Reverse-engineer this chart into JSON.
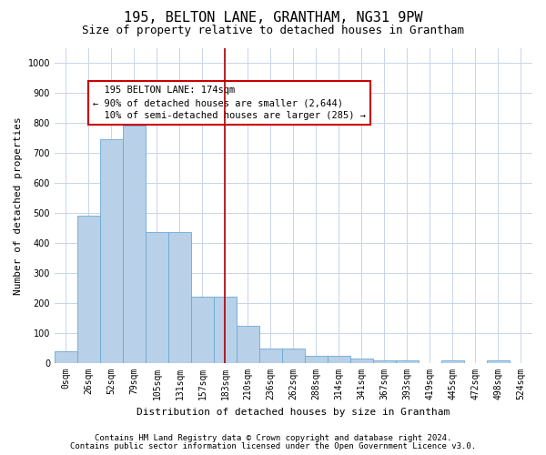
{
  "title": "195, BELTON LANE, GRANTHAM, NG31 9PW",
  "subtitle": "Size of property relative to detached houses in Grantham",
  "xlabel": "Distribution of detached houses by size in Grantham",
  "ylabel": "Number of detached properties",
  "categories": [
    "0sqm",
    "26sqm",
    "52sqm",
    "79sqm",
    "105sqm",
    "131sqm",
    "157sqm",
    "183sqm",
    "210sqm",
    "236sqm",
    "262sqm",
    "288sqm",
    "314sqm",
    "341sqm",
    "367sqm",
    "393sqm",
    "419sqm",
    "445sqm",
    "472sqm",
    "498sqm",
    "524sqm"
  ],
  "bar_heights": [
    40,
    490,
    745,
    790,
    435,
    435,
    220,
    220,
    125,
    50,
    50,
    25,
    25,
    15,
    10,
    10,
    0,
    10,
    0,
    10,
    0
  ],
  "bar_color": "#b8d0e8",
  "bar_edge_color": "#6aaad4",
  "vline_x": 7.0,
  "vline_color": "#aa0000",
  "annotation_text": "  195 BELTON LANE: 174sqm\n← 90% of detached houses are smaller (2,644)\n  10% of semi-detached houses are larger (285) →",
  "annotation_box_color": "#cc0000",
  "ylim": [
    0,
    1050
  ],
  "yticks": [
    0,
    100,
    200,
    300,
    400,
    500,
    600,
    700,
    800,
    900,
    1000
  ],
  "footer_line1": "Contains HM Land Registry data © Crown copyright and database right 2024.",
  "footer_line2": "Contains public sector information licensed under the Open Government Licence v3.0.",
  "bg_color": "#ffffff",
  "grid_color": "#c8d4e8",
  "title_fontsize": 11,
  "subtitle_fontsize": 9,
  "axis_label_fontsize": 8,
  "tick_fontsize": 7,
  "annotation_fontsize": 7.5,
  "footer_fontsize": 6.5
}
